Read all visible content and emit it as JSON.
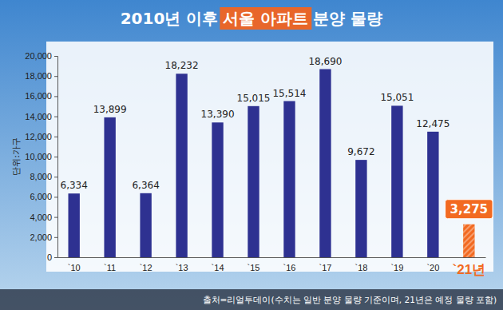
{
  "chart_data": {
    "type": "bar",
    "title_parts": [
      "2010년 이후",
      "서울 아파트",
      "분양 물량"
    ],
    "y_label": "단위:가구",
    "categories": [
      "`10",
      "`11",
      "`12",
      "`13",
      "`14",
      "`15",
      "`16",
      "`17",
      "`18",
      "`19",
      "`20",
      "`21년"
    ],
    "values": [
      6334,
      13899,
      6364,
      18232,
      13390,
      15015,
      15514,
      18690,
      9672,
      15051,
      12475,
      3275
    ],
    "value_labels": [
      "6,334",
      "13,899",
      "6,364",
      "18,232",
      "13,390",
      "15,015",
      "15,514",
      "18,690",
      "9,672",
      "15,051",
      "12,475",
      "3,275"
    ],
    "colors": [
      "#2e3191",
      "#2e3191",
      "#2e3191",
      "#2e3191",
      "#2e3191",
      "#2e3191",
      "#2e3191",
      "#2e3191",
      "#2e3191",
      "#2e3191",
      "#2e3191",
      "#f26a21"
    ],
    "ylim": [
      0,
      20000
    ],
    "yticks": [
      0,
      {
        "value": 2000,
        "label": "2,000"
      },
      {
        "value": 4000,
        "label": "4,000"
      },
      {
        "value": 6000,
        "label": "6,000"
      },
      {
        "value": 8000,
        "label": "8,000"
      },
      {
        "value": 10000,
        "label": "10,000"
      },
      {
        "value": 12000,
        "label": "12,000"
      },
      {
        "value": 14000,
        "label": "14,000"
      },
      {
        "value": 16000,
        "label": "16,000"
      },
      {
        "value": 18000,
        "label": "18,000"
      },
      {
        "value": 20000,
        "label": "20,000"
      }
    ],
    "grid": false,
    "data_labels": true,
    "source": "출처=리얼투데이(수치는 일반 분양 물량 기준이며, 21년은 예정 물량 포함)"
  }
}
